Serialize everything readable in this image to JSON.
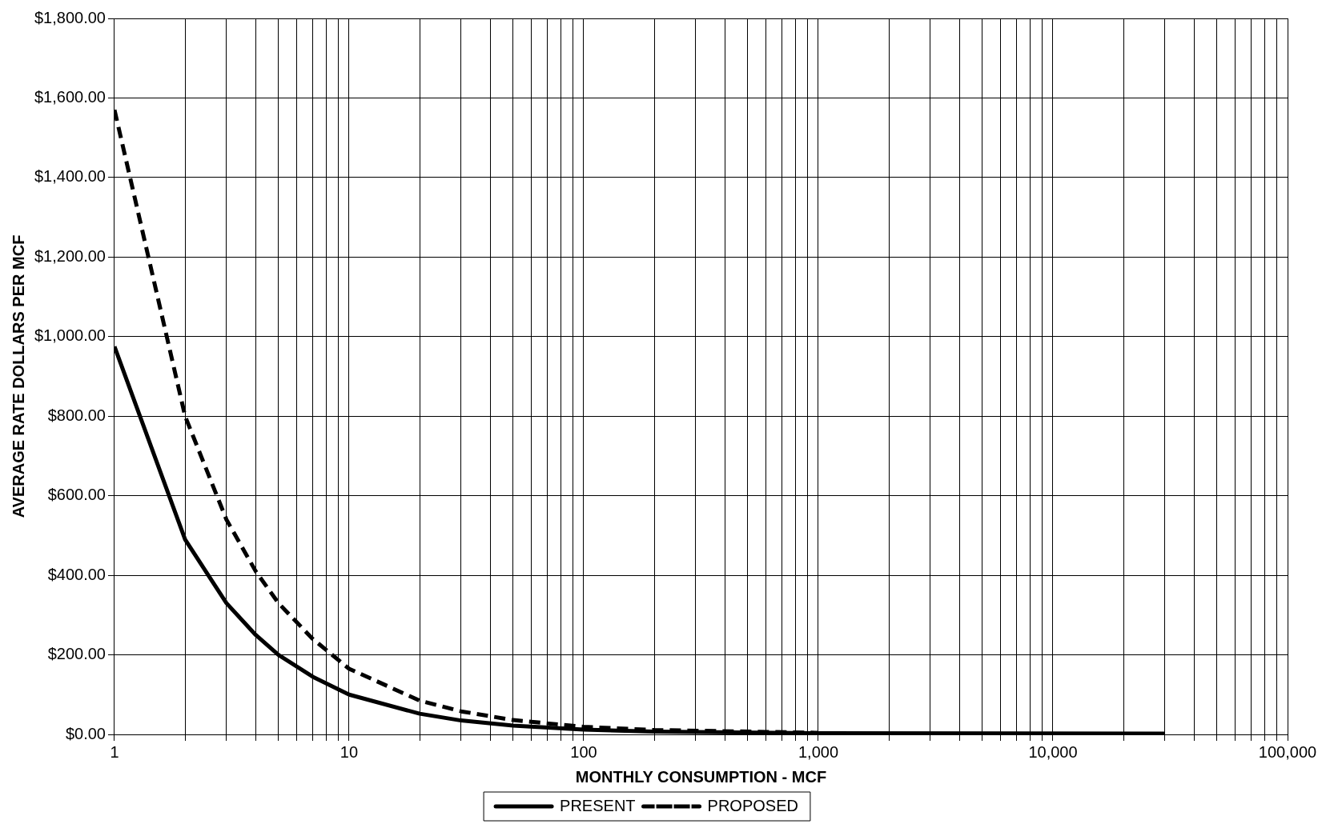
{
  "chart_data": {
    "type": "line",
    "xlabel": "MONTHLY CONSUMPTION - MCF",
    "ylabel": "AVERAGE RATE DOLLARS PER MCF",
    "log": "x",
    "grid": true,
    "legend": "bottom",
    "marker": "none",
    "xlim": [
      1,
      100000
    ],
    "ylim": [
      0,
      1800
    ],
    "xticks": [
      {
        "value": 1,
        "label": "1"
      },
      {
        "value": 2,
        "label": null
      },
      {
        "value": 3,
        "label": null
      },
      {
        "value": 4,
        "label": null
      },
      {
        "value": 5,
        "label": null
      },
      {
        "value": 6,
        "label": null
      },
      {
        "value": 7,
        "label": null
      },
      {
        "value": 8,
        "label": null
      },
      {
        "value": 9,
        "label": null
      },
      {
        "value": 10,
        "label": "10"
      },
      {
        "value": 20,
        "label": null
      },
      {
        "value": 30,
        "label": null
      },
      {
        "value": 40,
        "label": null
      },
      {
        "value": 50,
        "label": null
      },
      {
        "value": 60,
        "label": null
      },
      {
        "value": 70,
        "label": null
      },
      {
        "value": 80,
        "label": null
      },
      {
        "value": 90,
        "label": null
      },
      {
        "value": 100,
        "label": "100"
      },
      {
        "value": 200,
        "label": null
      },
      {
        "value": 300,
        "label": null
      },
      {
        "value": 400,
        "label": null
      },
      {
        "value": 500,
        "label": null
      },
      {
        "value": 600,
        "label": null
      },
      {
        "value": 700,
        "label": null
      },
      {
        "value": 800,
        "label": null
      },
      {
        "value": 900,
        "label": null
      },
      {
        "value": 1000,
        "label": "1,000"
      },
      {
        "value": 2000,
        "label": null
      },
      {
        "value": 3000,
        "label": null
      },
      {
        "value": 4000,
        "label": null
      },
      {
        "value": 5000,
        "label": null
      },
      {
        "value": 6000,
        "label": null
      },
      {
        "value": 7000,
        "label": null
      },
      {
        "value": 8000,
        "label": null
      },
      {
        "value": 9000,
        "label": null
      },
      {
        "value": 10000,
        "label": "10,000"
      },
      {
        "value": 20000,
        "label": null
      },
      {
        "value": 30000,
        "label": null
      },
      {
        "value": 40000,
        "label": null
      },
      {
        "value": 50000,
        "label": null
      },
      {
        "value": 60000,
        "label": null
      },
      {
        "value": 70000,
        "label": null
      },
      {
        "value": 80000,
        "label": null
      },
      {
        "value": 90000,
        "label": null
      },
      {
        "value": 100000,
        "label": "100,000"
      }
    ],
    "yticks": [
      {
        "value": 0,
        "label": "$0.00"
      },
      {
        "value": 200,
        "label": "$200.00"
      },
      {
        "value": 400,
        "label": "$400.00"
      },
      {
        "value": 600,
        "label": "$600.00"
      },
      {
        "value": 800,
        "label": "$800.00"
      },
      {
        "value": 1000,
        "label": "$1,000.00"
      },
      {
        "value": 1200,
        "label": "$1,200.00"
      },
      {
        "value": 1400,
        "label": "$1,400.00"
      },
      {
        "value": 1600,
        "label": "$1,600.00"
      },
      {
        "value": 1800,
        "label": "$1,800.00"
      }
    ],
    "series": [
      {
        "name": "PRESENT",
        "color": "#000000",
        "line_style": "solid",
        "x": [
          1,
          2,
          3,
          4,
          5,
          7,
          10,
          20,
          30,
          50,
          100,
          200,
          1000,
          30000
        ],
        "values": [
          975,
          490,
          330,
          250,
          200,
          145,
          100,
          52,
          35,
          22,
          12,
          7,
          3,
          2
        ]
      },
      {
        "name": "PROPOSED",
        "color": "#000000",
        "line_style": "dashed",
        "x": [
          1,
          2,
          3,
          4,
          5,
          7,
          10,
          20,
          30,
          50,
          100,
          200,
          1000
        ],
        "values": [
          1570,
          800,
          540,
          410,
          330,
          240,
          165,
          85,
          58,
          36,
          19,
          11,
          4
        ]
      }
    ]
  }
}
